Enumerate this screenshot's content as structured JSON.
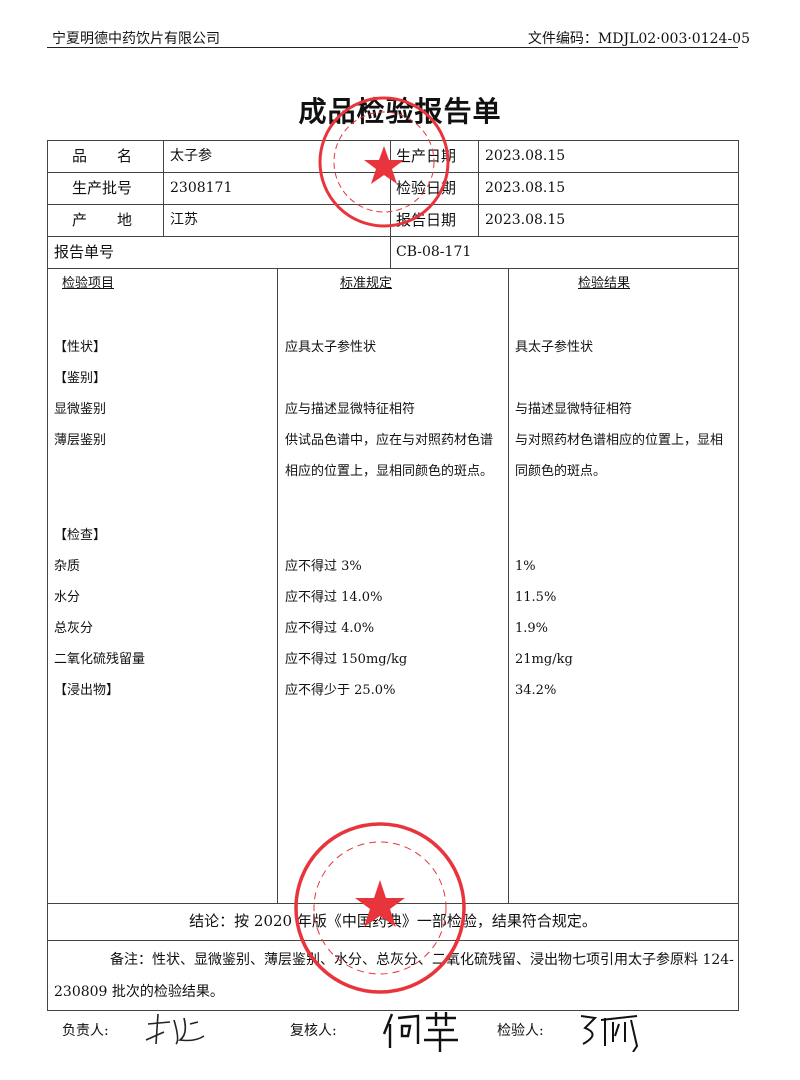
{
  "header": {
    "company": "宁夏明德中药饮片有限公司",
    "doc_code": "文件编码：MDJL02·003·0124-05"
  },
  "title": "成品检验报告单",
  "info": {
    "product_name_label": "品　　名",
    "product_name": "太子参",
    "batch_label": "生产批号",
    "batch": "2308171",
    "origin_label": "产　　地",
    "origin": "江苏",
    "prod_date_label": "生产日期",
    "prod_date": "2023.08.15",
    "test_date_label": "检验日期",
    "test_date": "2023.08.15",
    "report_date_label": "报告日期",
    "report_date": "2023.08.15",
    "report_no_label": "报告单号",
    "report_no": "CB-08-171"
  },
  "columns": [
    "检验项目",
    "标准规定",
    "检验结果"
  ],
  "rows": [
    {
      "item": "【性状】",
      "standard": "应具太子参性状",
      "result": "具太子参性状"
    },
    {
      "item": "【鉴别】",
      "standard": "",
      "result": ""
    },
    {
      "item": "显微鉴别",
      "standard": "应与描述显微特征相符",
      "result": "与描述显微特征相符"
    },
    {
      "item": "薄层鉴别",
      "standard": "供试品色谱中，应在与对照药材色谱相应的位置上，显相同颜色的斑点。",
      "result": "与对照药材色谱相应的位置上，显相同颜色的斑点。"
    },
    {
      "item": "【检查】",
      "standard": "",
      "result": ""
    },
    {
      "item": "杂质",
      "standard": "应不得过 3%",
      "result": "1%"
    },
    {
      "item": "水分",
      "standard": "应不得过 14.0%",
      "result": "11.5%"
    },
    {
      "item": "总灰分",
      "standard": "应不得过 4.0%",
      "result": "1.9%"
    },
    {
      "item": "二氧化硫残留量",
      "standard": "应不得过 150mg/kg",
      "result": "21mg/kg"
    },
    {
      "item": "【浸出物】",
      "standard": "应不得少于 25.0%",
      "result": "34.2%"
    }
  ],
  "conclusion": "结论：按 2020 年版《中国药典》一部检验，结果符合规定。",
  "notes": "备注：性状、显微鉴别、薄层鉴别、水分、总灰分、二氧化硫残留、浸出物七项引用太子参原料 124-230809 批次的检验结果。",
  "signatures": {
    "responsible_label": "负责人:",
    "reviewer_label": "复核人:",
    "inspector_label": "检验人:"
  },
  "stamps": {
    "top": {
      "ring": "宁夏明德中药饮片有限公司",
      "center": "质 量 部"
    },
    "bottom": {
      "ring": "宁夏明德中药饮片有限公司",
      "center": "质检专用章"
    }
  },
  "stamp_color": "#e8353b"
}
